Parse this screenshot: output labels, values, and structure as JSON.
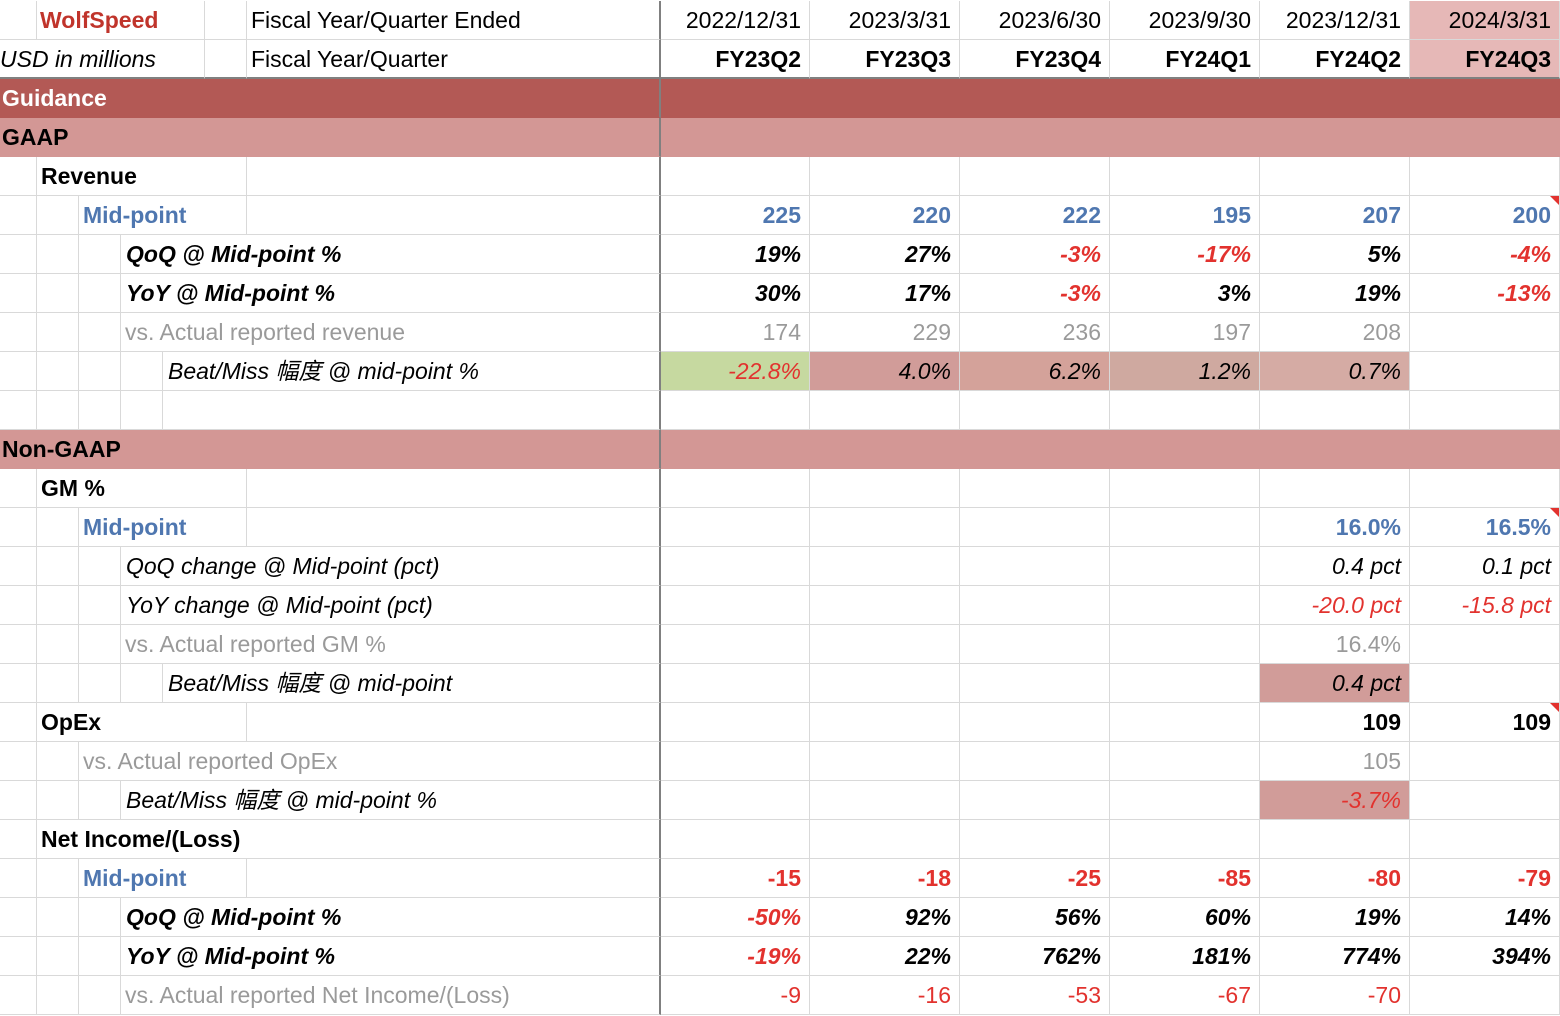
{
  "header": {
    "company": "WolfSpeed",
    "units": "USD in millions",
    "row1_label": "Fiscal Year/Quarter Ended",
    "row2_label": "Fiscal Year/Quarter",
    "dates": [
      "2022/12/31",
      "2023/3/31",
      "2023/6/30",
      "2023/9/30",
      "2023/12/31",
      "2024/3/31"
    ],
    "quarters": [
      "FY23Q2",
      "FY23Q3",
      "FY23Q4",
      "FY24Q1",
      "FY24Q2",
      "FY24Q3"
    ]
  },
  "sections": {
    "guidance": "Guidance",
    "gaap": "GAAP",
    "non_gaap": "Non-GAAP"
  },
  "revenue": {
    "label": "Revenue",
    "midpoint_label": "Mid-point",
    "midpoint": [
      "225",
      "220",
      "222",
      "195",
      "207",
      "200"
    ],
    "qoq_label": "QoQ @ Mid-point %",
    "qoq": [
      "19%",
      "27%",
      "-3%",
      "-17%",
      "5%",
      "-4%"
    ],
    "yoy_label": "YoY @ Mid-point %",
    "yoy": [
      "30%",
      "17%",
      "-3%",
      "3%",
      "19%",
      "-13%"
    ],
    "actual_label": "vs. Actual reported revenue",
    "actual": [
      "174",
      "229",
      "236",
      "197",
      "208",
      ""
    ],
    "beat_label": "Beat/Miss 幅度 @ mid-point %",
    "beat": [
      "-22.8%",
      "4.0%",
      "6.2%",
      "1.2%",
      "0.7%",
      ""
    ]
  },
  "gm": {
    "label": "GM %",
    "midpoint_label": "Mid-point",
    "midpoint": [
      "",
      "",
      "",
      "",
      "16.0%",
      "16.5%"
    ],
    "qoq_label": "QoQ change @ Mid-point (pct)",
    "qoq": [
      "",
      "",
      "",
      "",
      "0.4 pct",
      "0.1 pct"
    ],
    "yoy_label": "YoY change @ Mid-point (pct)",
    "yoy": [
      "",
      "",
      "",
      "",
      "-20.0 pct",
      "-15.8 pct"
    ],
    "actual_label": "vs. Actual reported GM %",
    "actual": [
      "",
      "",
      "",
      "",
      "16.4%",
      ""
    ],
    "beat_label": "Beat/Miss 幅度 @ mid-point",
    "beat": [
      "",
      "",
      "",
      "",
      "0.4 pct",
      ""
    ]
  },
  "opex": {
    "label": "OpEx",
    "values": [
      "",
      "",
      "",
      "",
      "109",
      "109"
    ],
    "actual_label": "vs. Actual reported OpEx",
    "actual": [
      "",
      "",
      "",
      "",
      "105",
      ""
    ],
    "beat_label": "Beat/Miss 幅度 @ mid-point %",
    "beat": [
      "",
      "",
      "",
      "",
      "-3.7%",
      ""
    ]
  },
  "net_income": {
    "label": "Net Income/(Loss)",
    "midpoint_label": "Mid-point",
    "midpoint": [
      "-15",
      "-18",
      "-25",
      "-85",
      "-80",
      "-79"
    ],
    "qoq_label": "QoQ @ Mid-point %",
    "qoq": [
      "-50%",
      "92%",
      "56%",
      "60%",
      "19%",
      "14%"
    ],
    "yoy_label": "YoY @ Mid-point %",
    "yoy": [
      "-19%",
      "22%",
      "762%",
      "181%",
      "774%",
      "394%"
    ],
    "actual_label": "vs. Actual reported Net Income/(Loss)",
    "actual": [
      "-9",
      "-16",
      "-53",
      "-67",
      "-70",
      ""
    ]
  },
  "colors": {
    "band_dark": "#b35955",
    "band_light": "#d39795",
    "negative": "#e2322e",
    "midpoint_blue": "#4f77b0",
    "actual_grey": "#9a9a9a",
    "beat_green": "#c6d9a0",
    "current_quarter_fill": "#e6b8b7"
  }
}
